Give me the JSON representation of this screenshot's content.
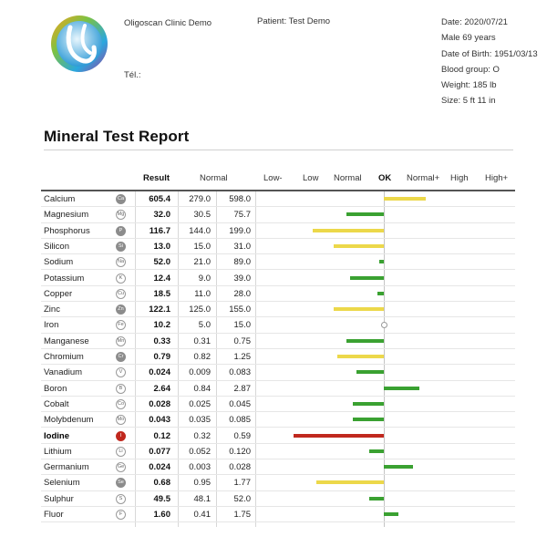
{
  "header": {
    "clinic": "Oligoscan Clinic Demo",
    "tel": "Tél.:",
    "patient": "Patient: Test Demo",
    "info": [
      "Date: 2020/07/21",
      "Male 69 years",
      "Date of Birth: 1951/03/13",
      "Blood group: O",
      "Weight: 185 lb",
      "Size: 5 ft 11 in"
    ]
  },
  "title": "Mineral Test Report",
  "columns": {
    "result": "Result",
    "normal": "Normal",
    "scale": [
      "Low-",
      "Low",
      "Normal",
      "OK",
      "Normal+",
      "High",
      "High+"
    ]
  },
  "colors": {
    "green": "#3aa131",
    "yellow": "#ecd84a",
    "red": "#c0281e"
  },
  "minerals": [
    {
      "name": "Calcium",
      "symbol": "Ca",
      "result": "605.4",
      "low": "279.0",
      "high": "598.0",
      "level": 1.0,
      "color": "yellow",
      "badge": "dark"
    },
    {
      "name": "Magnesium",
      "symbol": "Mg",
      "result": "32.0",
      "low": "30.5",
      "high": "75.7",
      "level": -0.9,
      "color": "green",
      "badge": ""
    },
    {
      "name": "Phosphorus",
      "symbol": "P",
      "result": "116.7",
      "low": "144.0",
      "high": "199.0",
      "level": -1.7,
      "color": "yellow",
      "badge": "dark"
    },
    {
      "name": "Silicon",
      "symbol": "Si",
      "result": "13.0",
      "low": "15.0",
      "high": "31.0",
      "level": -1.2,
      "color": "yellow",
      "badge": "dark"
    },
    {
      "name": "Sodium",
      "symbol": "Na",
      "result": "52.0",
      "low": "21.0",
      "high": "89.0",
      "level": -0.1,
      "color": "green",
      "badge": ""
    },
    {
      "name": "Potassium",
      "symbol": "K",
      "result": "12.4",
      "low": "9.0",
      "high": "39.0",
      "level": -0.8,
      "color": "green",
      "badge": ""
    },
    {
      "name": "Copper",
      "symbol": "Cu",
      "result": "18.5",
      "low": "11.0",
      "high": "28.0",
      "level": -0.15,
      "color": "green",
      "badge": ""
    },
    {
      "name": "Zinc",
      "symbol": "Zn",
      "result": "122.1",
      "low": "125.0",
      "high": "155.0",
      "level": -1.2,
      "color": "yellow",
      "badge": "dark"
    },
    {
      "name": "Iron",
      "symbol": "Fe",
      "result": "10.2",
      "low": "5.0",
      "high": "15.0",
      "level": 0,
      "color": "none",
      "badge": ""
    },
    {
      "name": "Manganese",
      "symbol": "Mn",
      "result": "0.33",
      "low": "0.31",
      "high": "0.75",
      "level": -0.9,
      "color": "green",
      "badge": ""
    },
    {
      "name": "Chromium",
      "symbol": "Cr",
      "result": "0.79",
      "low": "0.82",
      "high": "1.25",
      "level": -1.1,
      "color": "yellow",
      "badge": "dark"
    },
    {
      "name": "Vanadium",
      "symbol": "V",
      "result": "0.024",
      "low": "0.009",
      "high": "0.083",
      "level": -0.65,
      "color": "green",
      "badge": ""
    },
    {
      "name": "Boron",
      "symbol": "B",
      "result": "2.64",
      "low": "0.84",
      "high": "2.87",
      "level": 0.85,
      "color": "green",
      "badge": ""
    },
    {
      "name": "Cobalt",
      "symbol": "Co",
      "result": "0.028",
      "low": "0.025",
      "high": "0.045",
      "level": -0.75,
      "color": "green",
      "badge": ""
    },
    {
      "name": "Molybdenum",
      "symbol": "Mo",
      "result": "0.043",
      "low": "0.035",
      "high": "0.085",
      "level": -0.75,
      "color": "green",
      "badge": ""
    },
    {
      "name": "Iodine",
      "symbol": "I",
      "result": "0.12",
      "low": "0.32",
      "high": "0.59",
      "level": -2.15,
      "color": "red",
      "badge": "red",
      "bold": true
    },
    {
      "name": "Lithium",
      "symbol": "Li",
      "result": "0.077",
      "low": "0.052",
      "high": "0.120",
      "level": -0.35,
      "color": "green",
      "badge": ""
    },
    {
      "name": "Germanium",
      "symbol": "Ge",
      "result": "0.024",
      "low": "0.003",
      "high": "0.028",
      "level": 0.7,
      "color": "green",
      "badge": ""
    },
    {
      "name": "Selenium",
      "symbol": "Se",
      "result": "0.68",
      "low": "0.95",
      "high": "1.77",
      "level": -1.6,
      "color": "yellow",
      "badge": "dark"
    },
    {
      "name": "Sulphur",
      "symbol": "S",
      "result": "49.5",
      "low": "48.1",
      "high": "52.0",
      "level": -0.35,
      "color": "green",
      "badge": ""
    },
    {
      "name": "Fluor",
      "symbol": "F",
      "result": "1.60",
      "low": "0.41",
      "high": "1.75",
      "level": 0.35,
      "color": "green",
      "badge": ""
    }
  ]
}
